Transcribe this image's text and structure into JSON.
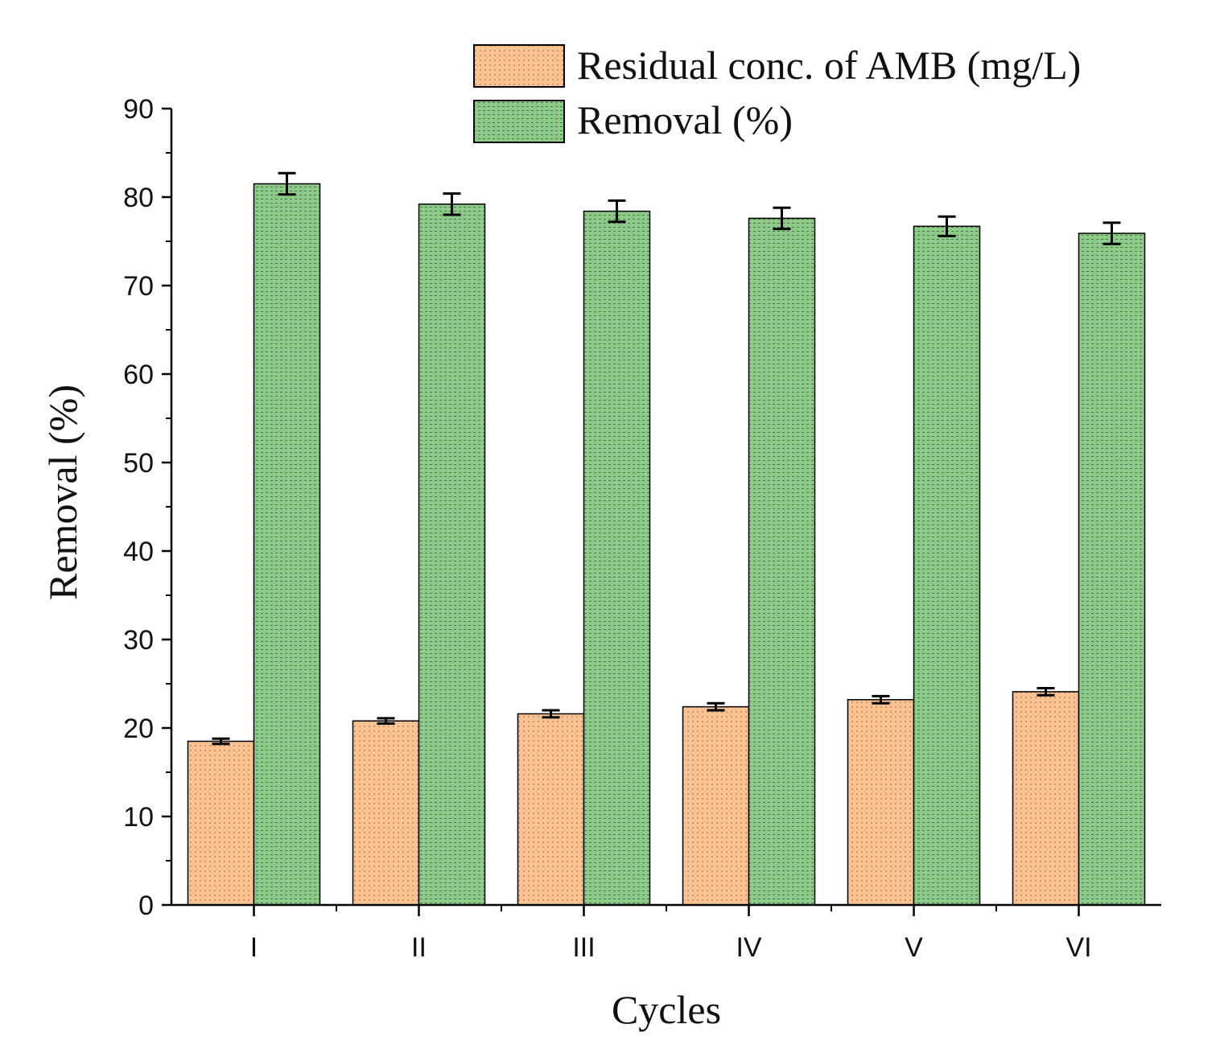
{
  "chart_data": {
    "type": "bar",
    "title": "",
    "xlabel": "Cycles",
    "ylabel": "Removal (%)",
    "ylim": [
      0,
      90
    ],
    "yticks": [
      0,
      10,
      20,
      30,
      40,
      50,
      60,
      70,
      80,
      90
    ],
    "categories": [
      "I",
      "II",
      "III",
      "IV",
      "V",
      "VI"
    ],
    "series": [
      {
        "name": "Residual conc. of AMB (mg/L)",
        "color": "#f9c393",
        "values": [
          18.5,
          20.8,
          21.6,
          22.4,
          23.2,
          24.1
        ],
        "errors": [
          0.3,
          0.3,
          0.4,
          0.4,
          0.4,
          0.4
        ]
      },
      {
        "name": "Removal (%)",
        "color": "#8fca8b",
        "values": [
          81.5,
          79.2,
          78.4,
          77.6,
          76.7,
          75.9
        ],
        "errors": [
          1.2,
          1.2,
          1.2,
          1.2,
          1.1,
          1.2
        ]
      }
    ],
    "legend_position": "top-right",
    "grid": false
  }
}
